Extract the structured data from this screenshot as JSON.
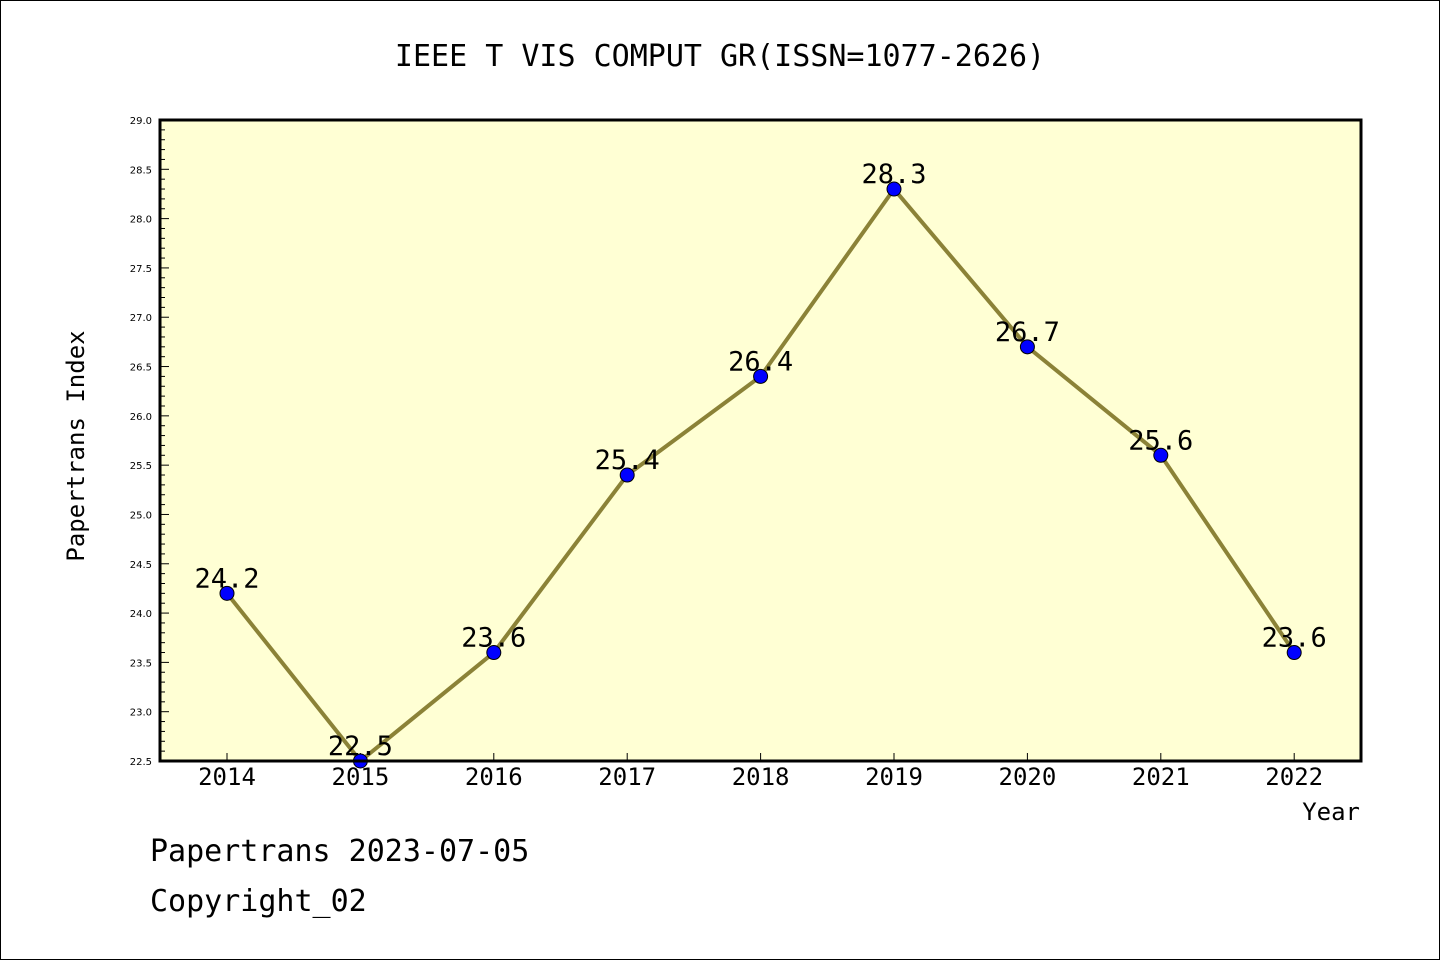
{
  "chart_data": {
    "type": "line",
    "title": "IEEE T VIS COMPUT GR(ISSN=1077-2626)",
    "xlabel": "Year",
    "ylabel": "Papertrans Index",
    "categories": [
      "2014",
      "2015",
      "2016",
      "2017",
      "2018",
      "2019",
      "2020",
      "2021",
      "2022"
    ],
    "series": [
      {
        "values": [
          24.2,
          22.5,
          23.6,
          25.4,
          26.4,
          28.3,
          26.7,
          25.6,
          23.6
        ],
        "data_labels": [
          "24.2",
          "22.5",
          "23.6",
          "25.4",
          "26.4",
          "28.3",
          "26.7",
          "25.6",
          "23.6"
        ]
      }
    ],
    "ylim": [
      22.5,
      29.0
    ],
    "yticks": [
      "22.5",
      "23.0",
      "23.5",
      "24.0",
      "24.5",
      "25.0",
      "25.5",
      "26.0",
      "26.5",
      "27.0",
      "27.5",
      "28.0",
      "28.5",
      "29.0"
    ],
    "grid": false,
    "colors": {
      "plot_background": "#ffffd4",
      "line": "#8b8237",
      "marker": "#0000ff"
    }
  },
  "footer": {
    "line1": "Papertrans 2023-07-05",
    "line2": "Copyright_02"
  }
}
